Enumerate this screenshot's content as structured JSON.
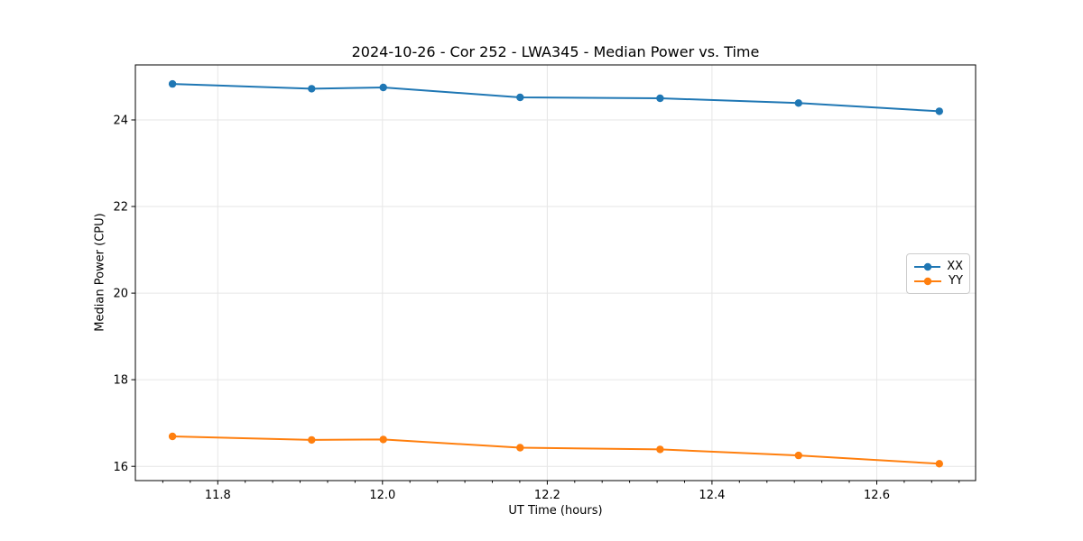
{
  "chart_data": {
    "type": "line",
    "title": "2024-10-26 - Cor 252 - LWA345 - Median Power vs. Time",
    "xlabel": "UT Time (hours)",
    "ylabel": "Median Power (CPU)",
    "xlim": [
      11.7,
      12.72
    ],
    "ylim": [
      15.67,
      25.27
    ],
    "grid": true,
    "legend_position": "center right",
    "x_major_ticks": [
      11.8,
      12.0,
      12.2,
      12.4,
      12.6
    ],
    "x_tick_labels": [
      "11.8",
      "12.0",
      "12.2",
      "12.4",
      "12.6"
    ],
    "x_minor_step": 0.0333333,
    "y_major_ticks": [
      16,
      18,
      20,
      22,
      24
    ],
    "y_tick_labels": [
      "16",
      "18",
      "20",
      "22",
      "24"
    ],
    "x": [
      11.745,
      11.914,
      12.001,
      12.167,
      12.337,
      12.505,
      12.676
    ],
    "series": [
      {
        "name": "XX",
        "color": "#1f77b4",
        "values": [
          24.83,
          24.72,
          24.75,
          24.52,
          24.5,
          24.39,
          24.2
        ]
      },
      {
        "name": "YY",
        "color": "#ff7f0e",
        "values": [
          16.69,
          16.61,
          16.62,
          16.43,
          16.39,
          16.25,
          16.06
        ]
      }
    ]
  },
  "colors": {
    "background": "#ffffff",
    "grid": "#e6e6e6",
    "spine": "#000000",
    "tick": "#000000",
    "series_xx": "#1f77b4",
    "series_yy": "#ff7f0e"
  }
}
